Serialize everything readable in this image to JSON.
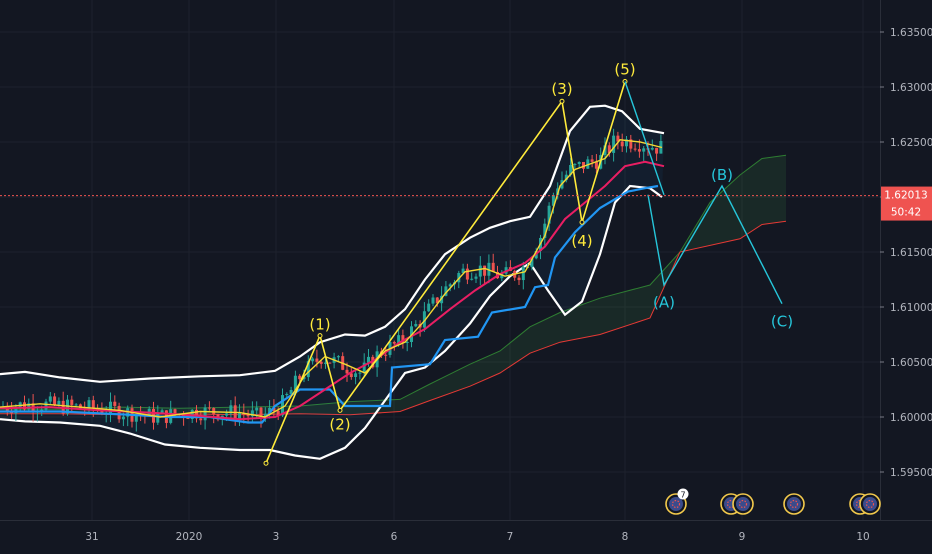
{
  "chart_data": {
    "type": "candlestick",
    "title": "",
    "xlabel": "",
    "ylabel": "",
    "ylim": [
      1.592,
      1.6385
    ],
    "grid": true,
    "x_ticks": [
      "31",
      "2020",
      "3",
      "6",
      "7",
      "8",
      "9",
      "10"
    ],
    "y_ticks": [
      "1.63500",
      "1.63000",
      "1.62500",
      "1.62000",
      "1.61500",
      "1.61000",
      "1.60500",
      "1.60000",
      "1.59500"
    ],
    "price": {
      "last": "1.62013",
      "countdown": "50:42",
      "value": 1.62013
    },
    "colors": {
      "background": "#131722",
      "up": "#26a69a",
      "down": "#ef5350",
      "wave_impulse": "#ffeb3b",
      "wave_corrective": "#26c6da",
      "bollinger": "#ffffff",
      "ma_fast": "#f5d833",
      "ma_slow": "#e91e63",
      "baseline": "#2196f3",
      "cloud_line": "#2e7d32",
      "lagging_line": "#e53935"
    },
    "series": [
      {
        "kind": "bollinger_upper",
        "points": [
          [
            0,
            1.6039
          ],
          [
            25,
            1.6041
          ],
          [
            60,
            1.6036
          ],
          [
            100,
            1.6032
          ],
          [
            150,
            1.6035
          ],
          [
            200,
            1.6037
          ],
          [
            240,
            1.6038
          ],
          [
            275,
            1.6042
          ],
          [
            300,
            1.6055
          ],
          [
            320,
            1.6068
          ],
          [
            345,
            1.6075
          ],
          [
            365,
            1.6074
          ],
          [
            385,
            1.6082
          ],
          [
            405,
            1.6098
          ],
          [
            425,
            1.6125
          ],
          [
            445,
            1.6148
          ],
          [
            470,
            1.6163
          ],
          [
            490,
            1.6172
          ],
          [
            510,
            1.6178
          ],
          [
            530,
            1.6182
          ],
          [
            550,
            1.621
          ],
          [
            570,
            1.626
          ],
          [
            590,
            1.6282
          ],
          [
            605,
            1.6283
          ],
          [
            622,
            1.6278
          ],
          [
            640,
            1.6262
          ],
          [
            664,
            1.6258
          ]
        ]
      },
      {
        "kind": "bollinger_lower",
        "points": [
          [
            0,
            1.5998
          ],
          [
            25,
            1.5996
          ],
          [
            60,
            1.5995
          ],
          [
            100,
            1.5992
          ],
          [
            130,
            1.5985
          ],
          [
            165,
            1.5975
          ],
          [
            200,
            1.5972
          ],
          [
            240,
            1.597
          ],
          [
            270,
            1.597
          ],
          [
            295,
            1.5965
          ],
          [
            320,
            1.5962
          ],
          [
            345,
            1.5972
          ],
          [
            365,
            1.599
          ],
          [
            385,
            1.6015
          ],
          [
            405,
            1.604
          ],
          [
            425,
            1.6045
          ],
          [
            445,
            1.606
          ],
          [
            470,
            1.6085
          ],
          [
            490,
            1.611
          ],
          [
            510,
            1.6128
          ],
          [
            530,
            1.614
          ],
          [
            548,
            1.6115
          ],
          [
            565,
            1.6093
          ],
          [
            582,
            1.6105
          ],
          [
            600,
            1.6148
          ],
          [
            615,
            1.6195
          ],
          [
            630,
            1.621
          ],
          [
            650,
            1.6208
          ],
          [
            662,
            1.62
          ]
        ]
      },
      {
        "kind": "moving_average_fast",
        "points": [
          [
            0,
            1.6009
          ],
          [
            40,
            1.6012
          ],
          [
            80,
            1.6009
          ],
          [
            120,
            1.6006
          ],
          [
            160,
            1.6
          ],
          [
            200,
            1.6005
          ],
          [
            240,
            1.6004
          ],
          [
            265,
            1.6
          ],
          [
            285,
            1.601
          ],
          [
            305,
            1.6038
          ],
          [
            325,
            1.6055
          ],
          [
            345,
            1.6048
          ],
          [
            365,
            1.604
          ],
          [
            385,
            1.606
          ],
          [
            405,
            1.6068
          ],
          [
            425,
            1.6088
          ],
          [
            445,
            1.6112
          ],
          [
            465,
            1.6132
          ],
          [
            485,
            1.6135
          ],
          [
            505,
            1.6128
          ],
          [
            525,
            1.6132
          ],
          [
            545,
            1.6165
          ],
          [
            560,
            1.621
          ],
          [
            575,
            1.6225
          ],
          [
            590,
            1.623
          ],
          [
            605,
            1.6235
          ],
          [
            620,
            1.6252
          ],
          [
            640,
            1.625
          ],
          [
            662,
            1.6245
          ]
        ]
      },
      {
        "kind": "moving_average_slow",
        "points": [
          [
            0,
            1.6008
          ],
          [
            50,
            1.6009
          ],
          [
            100,
            1.6006
          ],
          [
            150,
            1.6004
          ],
          [
            200,
            1.6001
          ],
          [
            240,
            1.5998
          ],
          [
            275,
            1.6
          ],
          [
            300,
            1.601
          ],
          [
            325,
            1.6025
          ],
          [
            350,
            1.604
          ],
          [
            375,
            1.6052
          ],
          [
            400,
            1.6068
          ],
          [
            425,
            1.608
          ],
          [
            450,
            1.6098
          ],
          [
            475,
            1.6115
          ],
          [
            500,
            1.613
          ],
          [
            525,
            1.614
          ],
          [
            545,
            1.6155
          ],
          [
            565,
            1.618
          ],
          [
            585,
            1.6195
          ],
          [
            605,
            1.621
          ],
          [
            625,
            1.6228
          ],
          [
            645,
            1.6232
          ],
          [
            664,
            1.6228
          ]
        ]
      },
      {
        "kind": "baseline",
        "points": [
          [
            0,
            1.6005
          ],
          [
            60,
            1.6005
          ],
          [
            130,
            1.6002
          ],
          [
            170,
            1.6
          ],
          [
            210,
            1.6
          ],
          [
            248,
            1.5995
          ],
          [
            262,
            1.5995
          ],
          [
            275,
            1.601
          ],
          [
            300,
            1.6025
          ],
          [
            330,
            1.6025
          ],
          [
            345,
            1.601
          ],
          [
            390,
            1.601
          ],
          [
            392,
            1.6045
          ],
          [
            430,
            1.6048
          ],
          [
            445,
            1.607
          ],
          [
            478,
            1.6073
          ],
          [
            492,
            1.6095
          ],
          [
            525,
            1.61
          ],
          [
            535,
            1.6118
          ],
          [
            548,
            1.612
          ],
          [
            555,
            1.6145
          ],
          [
            575,
            1.6168
          ],
          [
            600,
            1.619
          ],
          [
            628,
            1.6205
          ],
          [
            645,
            1.6208
          ],
          [
            658,
            1.621
          ]
        ]
      },
      {
        "kind": "cloud_upper",
        "points": [
          [
            0,
            1.6007
          ],
          [
            60,
            1.6007
          ],
          [
            120,
            1.6009
          ],
          [
            180,
            1.6008
          ],
          [
            240,
            1.6009
          ],
          [
            300,
            1.601
          ],
          [
            350,
            1.6014
          ],
          [
            400,
            1.6016
          ],
          [
            430,
            1.603
          ],
          [
            470,
            1.6048
          ],
          [
            500,
            1.606
          ],
          [
            530,
            1.6082
          ],
          [
            560,
            1.6095
          ],
          [
            600,
            1.6108
          ],
          [
            650,
            1.612
          ],
          [
            680,
            1.615
          ],
          [
            710,
            1.6195
          ],
          [
            740,
            1.622
          ],
          [
            762,
            1.6235
          ],
          [
            786,
            1.6238
          ]
        ]
      },
      {
        "kind": "cloud_lower",
        "points": [
          [
            0,
            1.6003
          ],
          [
            60,
            1.6003
          ],
          [
            120,
            1.6002
          ],
          [
            180,
            1.6003
          ],
          [
            240,
            1.6002
          ],
          [
            300,
            1.6003
          ],
          [
            350,
            1.6002
          ],
          [
            400,
            1.6005
          ],
          [
            430,
            1.6015
          ],
          [
            470,
            1.6028
          ],
          [
            500,
            1.604
          ],
          [
            530,
            1.6058
          ],
          [
            560,
            1.6068
          ],
          [
            600,
            1.6075
          ],
          [
            650,
            1.609
          ],
          [
            680,
            1.615
          ],
          [
            740,
            1.6162
          ],
          [
            762,
            1.6175
          ],
          [
            786,
            1.6178
          ]
        ]
      },
      {
        "kind": "wave_impulse",
        "points": [
          [
            266,
            1.5958
          ],
          [
            320,
            1.6074
          ],
          [
            340,
            1.6006
          ],
          [
            562,
            1.6287
          ],
          [
            582,
            1.6177
          ],
          [
            625,
            1.6305
          ],
          [
            664,
            1.6202
          ]
        ]
      },
      {
        "kind": "wave_corrective",
        "points": [
          [
            648,
            1.6202
          ],
          [
            664,
            1.612
          ],
          [
            722,
            1.621
          ],
          [
            782,
            1.6103
          ]
        ]
      }
    ],
    "annotations": [
      {
        "label": "(1)",
        "x": 320,
        "y": 1.6084,
        "color": "impulse"
      },
      {
        "label": "(2)",
        "x": 340,
        "y": 1.5993,
        "color": "impulse"
      },
      {
        "label": "(3)",
        "x": 562,
        "y": 1.6298,
        "color": "impulse"
      },
      {
        "label": "(4)",
        "x": 582,
        "y": 1.616,
        "color": "impulse"
      },
      {
        "label": "(5)",
        "x": 625,
        "y": 1.6316,
        "color": "impulse"
      },
      {
        "label": "(A)",
        "x": 664,
        "y": 1.6104,
        "color": "corrective"
      },
      {
        "label": "(B)",
        "x": 722,
        "y": 1.622,
        "color": "corrective"
      },
      {
        "label": "(C)",
        "x": 782,
        "y": 1.6087,
        "color": "corrective"
      }
    ],
    "events": [
      {
        "x": 676,
        "badge": "7"
      },
      {
        "x": 731
      },
      {
        "x": 743
      },
      {
        "x": 794
      },
      {
        "x": 860
      },
      {
        "x": 870
      }
    ]
  }
}
